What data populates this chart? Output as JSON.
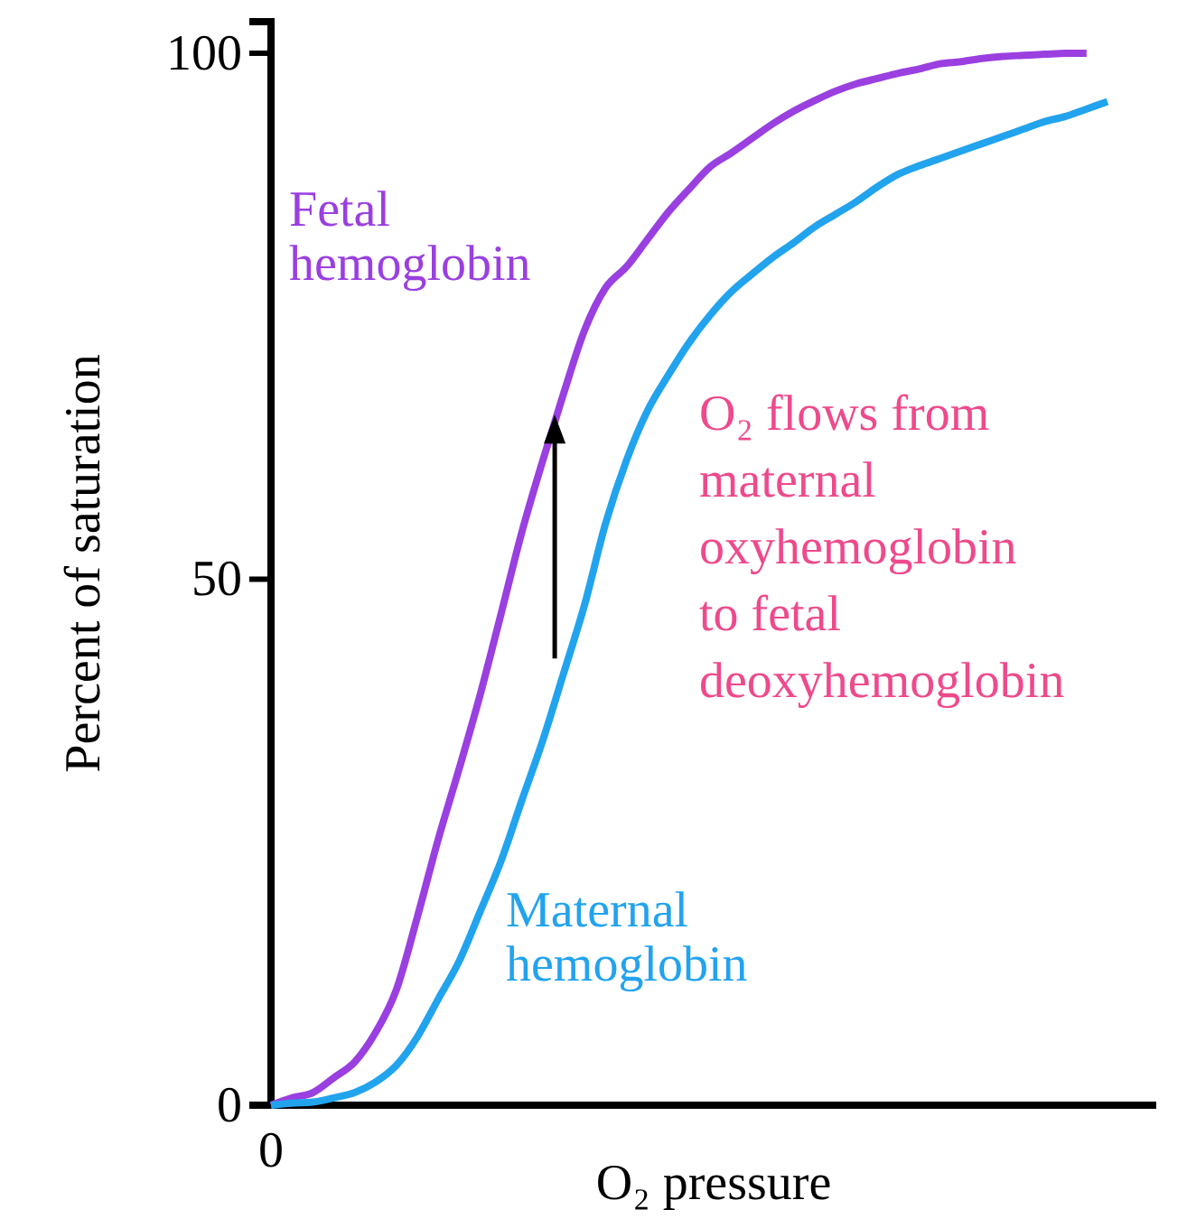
{
  "chart_data": {
    "type": "line",
    "xlabel": "O₂ pressure",
    "ylabel": "Percent of saturation",
    "categories": [
      "0",
      null,
      null,
      null,
      null,
      null,
      null,
      null,
      null,
      null,
      null,
      null,
      null,
      null,
      null,
      null,
      null,
      null,
      null,
      null,
      null,
      null,
      null,
      null,
      null,
      null,
      null,
      null,
      null,
      null,
      null,
      null,
      null,
      null,
      null,
      null,
      null,
      null,
      null,
      null,
      null
    ],
    "ylim": [
      0,
      103
    ],
    "yticks": [
      0,
      50,
      100
    ],
    "grid": false,
    "legend": false,
    "marker": "none",
    "line_style": "solid",
    "series": [
      {
        "name": "Fetal hemoglobin",
        "color": "#9a3fe0",
        "values": [
          0,
          0.7,
          1.2,
          2.6,
          4.1,
          6.9,
          11,
          17.9,
          25.3,
          32,
          39,
          46.7,
          54.5,
          61.3,
          67.7,
          73.7,
          77.7,
          79.7,
          82.3,
          84.9,
          87.1,
          89.2,
          90.5,
          91.9,
          93.3,
          94.5,
          95.5,
          96.4,
          97.1,
          97.6,
          98.1,
          98.5,
          99,
          99.2,
          99.5,
          99.7,
          99.8,
          99.9,
          100,
          100,
          null
        ]
      },
      {
        "name": "Maternal hemoglobin",
        "color": "#22a3ee",
        "values": [
          0,
          0.2,
          0.3,
          0.7,
          1.2,
          2.2,
          3.8,
          6.5,
          10.1,
          13.7,
          18.4,
          23.2,
          29,
          34.7,
          41.1,
          47.6,
          55.3,
          61.3,
          66,
          69.4,
          72.5,
          75.1,
          77.3,
          79,
          80.6,
          82,
          83.5,
          84.7,
          85.9,
          87.3,
          88.5,
          89.3,
          90,
          90.7,
          91.4,
          92.1,
          92.8,
          93.5,
          94,
          94.7,
          95.4
        ]
      }
    ],
    "annotations": [
      "O₂ flows from maternal oxyhemoglobin to fetal deoxyhemoglobin"
    ]
  }
}
